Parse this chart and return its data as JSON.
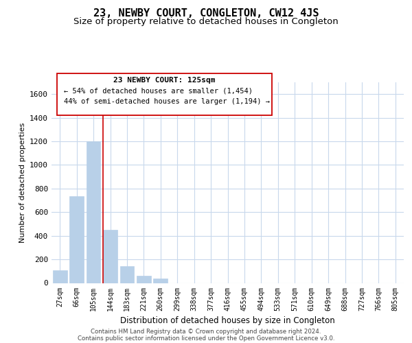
{
  "title": "23, NEWBY COURT, CONGLETON, CW12 4JS",
  "subtitle": "Size of property relative to detached houses in Congleton",
  "xlabel": "Distribution of detached houses by size in Congleton",
  "ylabel": "Number of detached properties",
  "bar_labels": [
    "27sqm",
    "66sqm",
    "105sqm",
    "144sqm",
    "183sqm",
    "221sqm",
    "260sqm",
    "299sqm",
    "338sqm",
    "377sqm",
    "416sqm",
    "455sqm",
    "494sqm",
    "533sqm",
    "571sqm",
    "610sqm",
    "649sqm",
    "688sqm",
    "727sqm",
    "766sqm",
    "805sqm"
  ],
  "bar_values": [
    110,
    735,
    1200,
    450,
    145,
    60,
    35,
    0,
    0,
    0,
    0,
    0,
    0,
    0,
    0,
    0,
    0,
    0,
    0,
    0,
    0
  ],
  "bar_color": "#b8d0e8",
  "vline_x": 2.57,
  "vline_color": "#cc0000",
  "ylim": [
    0,
    1700
  ],
  "yticks": [
    0,
    200,
    400,
    600,
    800,
    1000,
    1200,
    1400,
    1600
  ],
  "annotation_title": "23 NEWBY COURT: 125sqm",
  "annotation_line1": "← 54% of detached houses are smaller (1,454)",
  "annotation_line2": "44% of semi-detached houses are larger (1,194) →",
  "footer_line1": "Contains HM Land Registry data © Crown copyright and database right 2024.",
  "footer_line2": "Contains public sector information licensed under the Open Government Licence v3.0.",
  "background_color": "#ffffff",
  "grid_color": "#c8d8ec",
  "title_fontsize": 11,
  "subtitle_fontsize": 9.5
}
